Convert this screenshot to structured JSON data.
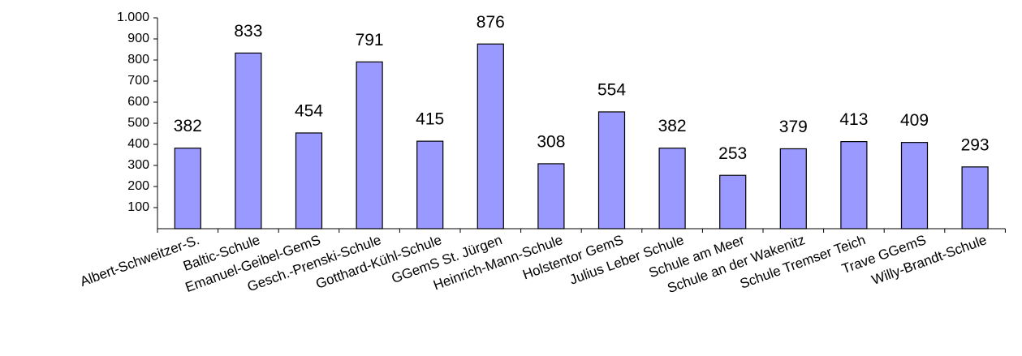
{
  "chart_data": {
    "type": "bar",
    "categories": [
      "Albert-Schweitzer-S.",
      "Baltic-Schule",
      "Emanuel-Geibel-GemS",
      "Gesch.-Prenski-Schule",
      "Gotthard-Kühl-Schule",
      "GGemS St. Jürgen",
      "Heinrich-Mann-Schule",
      "Holstentor GemS",
      "Julius Leber Schule",
      "Schule am Meer",
      "Schule an der Wakenitz",
      "Schule Tremser Teich",
      "Trave GGemS",
      "Willy-Brandt-Schule"
    ],
    "values": [
      382,
      833,
      454,
      791,
      415,
      876,
      308,
      554,
      382,
      253,
      379,
      413,
      409,
      293
    ],
    "color": "#9999ff",
    "ylim": [
      0,
      1000
    ],
    "yticks": [
      100,
      200,
      300,
      400,
      500,
      600,
      700,
      800,
      900,
      {
        "value": 1000,
        "label": "1.000"
      }
    ]
  }
}
